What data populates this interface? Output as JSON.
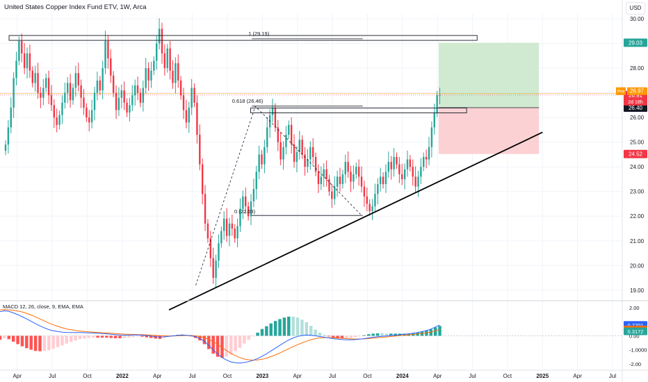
{
  "header": {
    "title": "United States Copper Index Fund ETV, 1W, Arca"
  },
  "currency": "USD",
  "colors": {
    "up": "#26a69a",
    "down": "#f23645",
    "pre": "#ff9800",
    "macd_line": "#2962ff",
    "signal_line": "#ff6d00",
    "target_zone": "#c8e6c9",
    "stop_zone": "#fbc9cc",
    "hist_up_strong": "#26a69a",
    "hist_up_weak": "#b2dfdb",
    "hist_down_strong": "#ff5252",
    "hist_down_weak": "#ffcdd2"
  },
  "chart_data": [
    {
      "type": "candlestick",
      "title": "United States Copper Index Fund ETV, 1W, Arca",
      "x_axis": {
        "ticks": [
          "Apr",
          "Jul",
          "Oct",
          "2022",
          "Apr",
          "Jul",
          "Oct",
          "2023",
          "Apr",
          "Jul",
          "Oct",
          "2024",
          "Apr",
          "Jul",
          "Oct",
          "2025",
          "Apr",
          "Jul"
        ],
        "range": [
          "2021-03",
          "2025-07"
        ]
      },
      "y_axis": {
        "ticks": [
          "30.00",
          "29.00",
          "28.00",
          "27.00",
          "26.00",
          "25.00",
          "24.00",
          "23.00",
          "22.00",
          "21.00",
          "20.00",
          "19.00"
        ],
        "range": [
          18.6,
          30.2
        ],
        "position": "right"
      },
      "weekly_closes": [
        24.9,
        25.6,
        26.4,
        27.6,
        28.3,
        29.1,
        28.6,
        28.0,
        28.6,
        27.9,
        27.4,
        27.8,
        27.0,
        26.8,
        27.2,
        27.6,
        26.9,
        26.5,
        26.0,
        25.7,
        26.1,
        26.6,
        27.0,
        27.4,
        26.7,
        27.2,
        27.8,
        27.3,
        26.8,
        26.4,
        26.0,
        25.8,
        26.3,
        27.0,
        27.5,
        27.1,
        28.0,
        29.1,
        28.4,
        27.7,
        27.0,
        26.3,
        26.8,
        27.1,
        26.6,
        26.2,
        26.5,
        26.9,
        27.3,
        27.0,
        26.6,
        27.2,
        28.0,
        27.5,
        27.9,
        28.3,
        29.0,
        29.6,
        28.6,
        28.0,
        28.8,
        27.9,
        27.4,
        28.2,
        27.5,
        26.9,
        26.3,
        25.8,
        26.4,
        27.2,
        26.6,
        25.3,
        24.1,
        22.9,
        21.7,
        21.1,
        20.3,
        19.5,
        20.2,
        20.9,
        21.4,
        21.9,
        21.2,
        21.7,
        21.5,
        21.1,
        21.6,
        22.3,
        22.8,
        22.4,
        22.0,
        22.6,
        23.1,
        23.8,
        24.5,
        24.1,
        24.8,
        25.6,
        26.1,
        26.4,
        25.6,
        25.0,
        24.3,
        24.8,
        25.3,
        25.7,
        24.9,
        24.2,
        24.6,
        25.1,
        24.5,
        24.0,
        24.3,
        24.8,
        24.4,
        23.8,
        23.3,
        23.6,
        23.9,
        23.5,
        23.0,
        22.7,
        23.2,
        23.6,
        23.3,
        23.7,
        24.2,
        23.8,
        23.4,
        23.7,
        24.0,
        23.6,
        23.2,
        22.8,
        22.5,
        22.2,
        22.4,
        22.9,
        23.3,
        23.6,
        23.3,
        23.8,
        24.2,
        23.9,
        24.4,
        24.1,
        23.7,
        23.5,
        23.9,
        24.3,
        24.0,
        23.6,
        23.2,
        23.6,
        24.0,
        24.4,
        24.3,
        24.8,
        25.6,
        26.2,
        26.9,
        26.91
      ],
      "annotations": {
        "fib_1_label": "1 (29.19)",
        "fib_0618_label": "0.618 (26.46)",
        "fib_0_label": "0 (22.03)"
      },
      "levels": {
        "fib_1": 29.19,
        "fib_0618": 26.46,
        "fib_0": 22.03
      },
      "position_tool": {
        "entry": 26.4,
        "target": 29.03,
        "stop": 24.52
      },
      "trendline": {
        "from": [
          "2022-05",
          18.2
        ],
        "to": [
          "2025-01",
          25.4
        ]
      },
      "price_tags": {
        "target": "29.03",
        "pre_label": "Pre",
        "pre_price": "26.97",
        "last_price": "26.91",
        "countdown": "2d 18h",
        "entry": "26.40",
        "stop": "24.52"
      },
      "grid": true
    },
    {
      "type": "line",
      "title": "MACD 12, 26, close, 9, EMA, EMA",
      "y_axis": {
        "ticks": [
          "2.00",
          "0.00",
          "-1.0000",
          "-2.00"
        ],
        "range": [
          -2.3,
          2.1
        ]
      },
      "series": [
        {
          "name": "MACD",
          "values": [
            1.72,
            1.78,
            1.74,
            1.63,
            1.5,
            1.36,
            1.2,
            1.03,
            0.86,
            0.7,
            0.56,
            0.44,
            0.36,
            0.3,
            0.26,
            0.24,
            0.23,
            0.23,
            0.23,
            0.22,
            0.21,
            0.2,
            0.18,
            0.16,
            0.14,
            0.11,
            0.08,
            0.06,
            0.05,
            0.05,
            0.06,
            0.07,
            0.05,
            0.02,
            -0.02,
            -0.06,
            -0.09,
            -0.07,
            -0.04,
            0.0,
            0.03,
            0.05,
            0.04,
            0.01,
            -0.07,
            -0.2,
            -0.4,
            -0.68,
            -1.0,
            -1.3,
            -1.55,
            -1.72,
            -1.86,
            -1.92,
            -1.94,
            -1.9,
            -1.84,
            -1.74,
            -1.62,
            -1.45,
            -1.28,
            -1.08,
            -0.88,
            -0.68,
            -0.48,
            -0.3,
            -0.15,
            -0.04,
            0.02,
            0.06,
            0.04,
            0.0,
            -0.05,
            -0.1,
            -0.15,
            -0.2,
            -0.24,
            -0.27,
            -0.29,
            -0.29,
            -0.27,
            -0.24,
            -0.2,
            -0.15,
            -0.1,
            -0.06,
            -0.03,
            -0.01,
            0.02,
            0.05,
            0.08,
            0.11,
            0.14,
            0.18,
            0.23,
            0.3,
            0.38,
            0.48,
            0.62,
            0.77
          ]
        },
        {
          "name": "Signal",
          "values": [
            1.85,
            1.86,
            1.85,
            1.82,
            1.77,
            1.7,
            1.6,
            1.48,
            1.35,
            1.2,
            1.05,
            0.91,
            0.78,
            0.67,
            0.57,
            0.49,
            0.43,
            0.38,
            0.34,
            0.31,
            0.28,
            0.26,
            0.24,
            0.22,
            0.2,
            0.18,
            0.16,
            0.14,
            0.12,
            0.11,
            0.1,
            0.09,
            0.08,
            0.07,
            0.05,
            0.03,
            0.01,
            0.0,
            -0.01,
            -0.01,
            0.0,
            0.01,
            0.02,
            0.02,
            0.0,
            -0.05,
            -0.13,
            -0.25,
            -0.42,
            -0.62,
            -0.84,
            -1.05,
            -1.25,
            -1.42,
            -1.55,
            -1.65,
            -1.71,
            -1.73,
            -1.72,
            -1.67,
            -1.59,
            -1.48,
            -1.36,
            -1.22,
            -1.07,
            -0.92,
            -0.77,
            -0.63,
            -0.5,
            -0.38,
            -0.28,
            -0.2,
            -0.15,
            -0.13,
            -0.13,
            -0.14,
            -0.16,
            -0.18,
            -0.2,
            -0.22,
            -0.23,
            -0.23,
            -0.22,
            -0.2,
            -0.17,
            -0.14,
            -0.11,
            -0.08,
            -0.05,
            -0.02,
            0.01,
            0.04,
            0.07,
            0.1,
            0.13,
            0.17,
            0.21,
            0.27,
            0.35,
            0.45
          ]
        }
      ],
      "value_tags": {
        "macd": "0.7701",
        "signal": "0.4529",
        "histogram": "0.3172"
      }
    }
  ]
}
